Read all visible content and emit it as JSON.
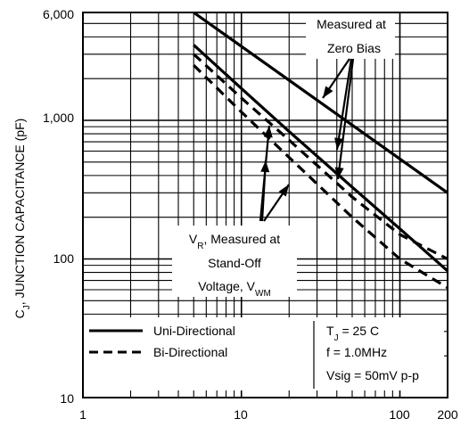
{
  "chart_data": {
    "type": "line",
    "x_scale": "log",
    "y_scale": "log",
    "xlim": [
      1,
      200
    ],
    "ylim": [
      10,
      6000
    ],
    "x_ticks": [
      "1",
      "10",
      "100",
      "200"
    ],
    "y_ticks": [
      "10",
      "100",
      "1,000",
      "6,000"
    ],
    "ylabel_prefix": "C",
    "ylabel_sub": "J",
    "ylabel_rest": ", JUNCTION CAPACITANCE (pF)",
    "grid": true,
    "series": [
      {
        "name": "Uni-Directional",
        "condition": "Measured at Zero Bias",
        "style": "solid",
        "x": [
          5,
          200
        ],
        "y": [
          6000,
          300
        ]
      },
      {
        "name": "Uni-Directional",
        "condition": "VR, Measured at Stand-Off Voltage, VWM",
        "style": "solid",
        "x": [
          5,
          10,
          20,
          50,
          100,
          200
        ],
        "y": [
          3500,
          1700,
          830,
          330,
          165,
          82
        ]
      },
      {
        "name": "Bi-Directional",
        "condition": "Measured at Zero Bias",
        "style": "dashed",
        "x": [
          5,
          10,
          20,
          50,
          100,
          200
        ],
        "y": [
          3000,
          1450,
          720,
          280,
          150,
          100
        ]
      },
      {
        "name": "Bi-Directional",
        "condition": "VR, Measured at Stand-Off Voltage, VWM",
        "style": "dashed",
        "x": [
          5,
          10,
          20,
          50,
          100,
          200
        ],
        "y": [
          2500,
          1150,
          540,
          200,
          100,
          62
        ]
      }
    ],
    "annotations": {
      "zero_bias": {
        "line1": "Measured at",
        "line2": "Zero Bias"
      },
      "standoff": {
        "line1_prefix": "V",
        "line1_sub": "R",
        "line1_rest": ", Measured at",
        "line2": "Stand-Off",
        "line3_prefix": "Voltage, V",
        "line3_sub": "WM"
      }
    },
    "legend": {
      "placement": "bottom",
      "items": [
        {
          "label": "Uni-Directional",
          "style": "solid"
        },
        {
          "label": "Bi-Directional",
          "style": "dashed"
        }
      ],
      "conditions": {
        "tj_prefix": "T",
        "tj_sub": "J",
        "tj_rest": " = 25 C",
        "freq": "f = 1.0MHz",
        "vsig": "Vsig = 50mV p-p"
      }
    }
  }
}
